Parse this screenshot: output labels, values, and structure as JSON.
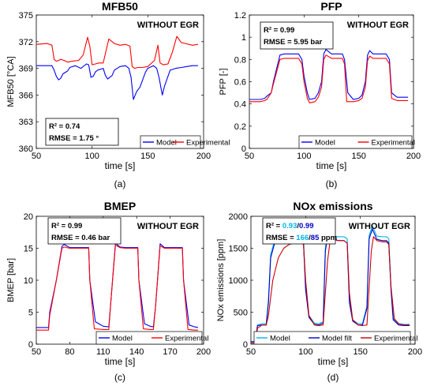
{
  "chart_data": [
    {
      "type": "line",
      "title": "MFB50",
      "xlabel": "time [s]",
      "ylabel": "MFB50 [°CA]",
      "xlim": [
        50,
        200
      ],
      "ylim": [
        360,
        375
      ],
      "xticks": [
        "50",
        "100",
        "150",
        "200"
      ],
      "yticks": [
        "360",
        "363",
        "366",
        "369",
        "372",
        "375"
      ],
      "annotation": "WITHOUT EGR",
      "stats": [
        "R² = 0.74",
        "RMSE = 1.75 °"
      ],
      "legend_position": "bottom-right",
      "caption": "(a)",
      "series": [
        {
          "name": "Model",
          "color": "#0000ff",
          "x": [
            50,
            64,
            66,
            68,
            70,
            72,
            74,
            78,
            80,
            85,
            90,
            95,
            97,
            99,
            101,
            103,
            105,
            110,
            112,
            114,
            118,
            120,
            125,
            130,
            133,
            135,
            137,
            140,
            143,
            148,
            150,
            155,
            158,
            160,
            163,
            165,
            170,
            175,
            180,
            185,
            190,
            195
          ],
          "y": [
            369.3,
            369.3,
            368.8,
            368.1,
            367.7,
            367.9,
            368.4,
            368.7,
            369.1,
            369.3,
            369.0,
            369.5,
            369.4,
            368.0,
            368.1,
            368.6,
            368.8,
            369.0,
            368.2,
            367.8,
            368.2,
            368.8,
            369.2,
            369.3,
            369.0,
            368.0,
            365.5,
            366.4,
            366.9,
            368.6,
            369.0,
            369.3,
            369.0,
            368.0,
            366.0,
            367.0,
            368.8,
            369.0,
            369.1,
            369.2,
            369.3,
            369.3
          ]
        },
        {
          "name": "Experimental",
          "color": "#ff0000",
          "x": [
            50,
            60,
            64,
            66,
            68,
            72,
            75,
            78,
            82,
            88,
            92,
            96,
            98,
            100,
            103,
            106,
            110,
            113,
            115,
            120,
            125,
            130,
            134,
            136,
            138,
            141,
            145,
            150,
            156,
            159,
            161,
            164,
            168,
            172,
            176,
            180,
            190,
            195
          ],
          "y": [
            371.7,
            371.8,
            371.6,
            370.0,
            369.8,
            370.0,
            369.9,
            369.7,
            369.8,
            369.9,
            370.5,
            372.5,
            371.5,
            369.4,
            369.5,
            369.6,
            369.6,
            371.2,
            372.3,
            371.8,
            371.6,
            371.7,
            371.5,
            369.2,
            369.0,
            369.1,
            369.1,
            369.2,
            369.9,
            371.6,
            369.6,
            369.4,
            369.5,
            370.8,
            372.6,
            371.9,
            371.6,
            371.7
          ]
        }
      ]
    },
    {
      "type": "line",
      "title": "PFP",
      "xlabel": "time [s]",
      "ylabel": "PFP [-]",
      "xlim": [
        50,
        200
      ],
      "ylim": [
        0,
        1.2
      ],
      "xticks": [
        "50",
        "100",
        "150",
        "200"
      ],
      "yticks": [
        "0",
        "0.2",
        "0.4",
        "0.6",
        "0.8",
        "1",
        "1.2"
      ],
      "annotation": "WITHOUT EGR",
      "stats": [
        "R² = 0.99",
        "RMSE = 5.95 bar"
      ],
      "legend_position": "bottom-right",
      "caption": "(b)",
      "series": [
        {
          "name": "Model",
          "color": "#0000ff",
          "x": [
            50,
            60,
            64,
            66,
            70,
            72,
            78,
            82,
            90,
            95,
            98,
            100,
            103,
            105,
            110,
            113,
            116,
            118,
            120,
            125,
            130,
            135,
            137,
            140,
            145,
            150,
            153,
            156,
            158,
            160,
            163,
            165,
            170,
            175,
            178,
            180,
            185,
            190,
            195
          ],
          "y": [
            0.44,
            0.44,
            0.45,
            0.47,
            0.5,
            0.6,
            0.84,
            0.85,
            0.85,
            0.85,
            0.8,
            0.65,
            0.5,
            0.44,
            0.45,
            0.5,
            0.6,
            0.85,
            0.89,
            0.85,
            0.85,
            0.85,
            0.8,
            0.5,
            0.44,
            0.45,
            0.48,
            0.6,
            0.84,
            0.88,
            0.85,
            0.85,
            0.85,
            0.85,
            0.8,
            0.5,
            0.46,
            0.46,
            0.46
          ]
        },
        {
          "name": "Experimental",
          "color": "#ff0000",
          "x": [
            50,
            60,
            64,
            66,
            70,
            72,
            78,
            82,
            90,
            95,
            98,
            100,
            103,
            105,
            110,
            113,
            116,
            118,
            120,
            125,
            130,
            135,
            137,
            139,
            145,
            150,
            153,
            156,
            158,
            160,
            163,
            165,
            170,
            175,
            178,
            180,
            185,
            190,
            195
          ],
          "y": [
            0.42,
            0.42,
            0.43,
            0.44,
            0.5,
            0.58,
            0.8,
            0.81,
            0.81,
            0.81,
            0.76,
            0.6,
            0.45,
            0.41,
            0.42,
            0.46,
            0.55,
            0.8,
            0.84,
            0.81,
            0.81,
            0.81,
            0.76,
            0.42,
            0.42,
            0.43,
            0.45,
            0.55,
            0.79,
            0.83,
            0.81,
            0.81,
            0.81,
            0.81,
            0.76,
            0.45,
            0.43,
            0.43,
            0.43
          ]
        }
      ]
    },
    {
      "type": "line",
      "title": "BMEP",
      "xlabel": "time [s]",
      "ylabel": "BMEP [bar]",
      "xlim": [
        50,
        200
      ],
      "ylim": [
        0,
        20
      ],
      "xticks": [
        "50",
        "80",
        "110",
        "140",
        "170",
        "200"
      ],
      "yticks": [
        "0",
        "5",
        "10",
        "15",
        "20"
      ],
      "annotation": "WITHOUT EGR",
      "stats": [
        "R² = 0.99",
        "RMSE = 0.46 bar"
      ],
      "legend_position": "bottom-right",
      "caption": "(c)",
      "series": [
        {
          "name": "Model",
          "color": "#0000ff",
          "x": [
            50,
            55,
            61,
            62,
            68,
            73,
            75,
            80,
            85,
            90,
            97,
            98,
            103,
            110,
            115,
            117,
            121,
            125,
            130,
            135,
            141,
            142,
            147,
            152,
            155,
            157,
            161,
            165,
            170,
            175,
            181,
            182,
            187,
            192,
            195
          ],
          "y": [
            2.6,
            2.6,
            2.6,
            5.0,
            10.0,
            15.3,
            15.6,
            15.1,
            15.1,
            15.1,
            15.1,
            10.0,
            3.5,
            2.8,
            2.7,
            7.0,
            15.8,
            15.2,
            15.1,
            15.1,
            15.1,
            10.0,
            3.2,
            2.8,
            2.7,
            6.0,
            15.7,
            15.1,
            15.1,
            15.1,
            15.1,
            10.0,
            3.0,
            2.7,
            2.6
          ]
        },
        {
          "name": "Experimental",
          "color": "#ff0000",
          "x": [
            50,
            55,
            61,
            62,
            68,
            73,
            75,
            80,
            85,
            90,
            97,
            98,
            102,
            110,
            115,
            117,
            121,
            125,
            130,
            135,
            141,
            142,
            146,
            152,
            155,
            157,
            161,
            165,
            170,
            175,
            181,
            182,
            186,
            192,
            195
          ],
          "y": [
            2.2,
            2.2,
            2.2,
            4.5,
            10.0,
            15.0,
            15.2,
            15.0,
            15.0,
            15.0,
            15.0,
            10.0,
            2.4,
            2.3,
            2.3,
            7.0,
            15.5,
            15.1,
            15.0,
            15.0,
            15.0,
            10.0,
            2.4,
            2.3,
            2.3,
            6.0,
            15.4,
            15.0,
            15.0,
            15.0,
            15.0,
            10.0,
            2.3,
            2.2,
            2.2
          ]
        }
      ]
    },
    {
      "type": "line",
      "title": "NOx emissions",
      "xlabel": "time [s]",
      "ylabel": "NOx emissions [ppm]",
      "xlim": [
        50,
        200
      ],
      "ylim": [
        0,
        2000
      ],
      "xticks": [
        "50",
        "100",
        "150",
        "200"
      ],
      "yticks": [
        "0",
        "500",
        "1000",
        "1500",
        "2000"
      ],
      "annotation": "WITHOUT EGR",
      "stats_label_1": "R² = ",
      "stats_value_1a": "0.93",
      "stats_sep": "/",
      "stats_value_1b": "0.99",
      "stats_label_2": "RMSE = ",
      "stats_value_2a": "166",
      "stats_value_2b": "85",
      "stats_unit_2": " ppm",
      "stats_colors": [
        "#00b4f0",
        "#0000c8"
      ],
      "legend_position": "bottom",
      "caption": "(d)",
      "series": [
        {
          "name": "Model",
          "color": "#00b4f0",
          "x": [
            50,
            54,
            56,
            60,
            64,
            66,
            68,
            72,
            75,
            80,
            85,
            90,
            95,
            98,
            100,
            103,
            108,
            112,
            116,
            118,
            121,
            125,
            130,
            135,
            138,
            140,
            143,
            148,
            152,
            156,
            158,
            161,
            165,
            170,
            174,
            176,
            178,
            180,
            185,
            190,
            195
          ],
          "y": [
            40,
            40,
            300,
            320,
            320,
            700,
            1400,
            1650,
            1680,
            1690,
            1690,
            1690,
            1690,
            1650,
            900,
            450,
            330,
            320,
            350,
            1500,
            1850,
            1690,
            1680,
            1680,
            1650,
            700,
            380,
            320,
            320,
            600,
            1700,
            1850,
            1690,
            1680,
            1680,
            1650,
            900,
            400,
            320,
            310,
            310
          ]
        },
        {
          "name": "Model filt",
          "color": "#0000c8",
          "x": [
            50,
            54,
            56,
            60,
            64,
            66,
            68,
            72,
            75,
            80,
            85,
            90,
            95,
            98,
            100,
            103,
            108,
            112,
            116,
            118,
            121,
            125,
            130,
            135,
            138,
            140,
            143,
            148,
            152,
            156,
            158,
            161,
            165,
            170,
            174,
            176,
            178,
            180,
            185,
            190,
            195
          ],
          "y": [
            40,
            40,
            290,
            300,
            300,
            650,
            1350,
            1600,
            1620,
            1620,
            1620,
            1620,
            1620,
            1580,
            850,
            420,
            310,
            300,
            330,
            1450,
            1800,
            1640,
            1620,
            1620,
            1580,
            650,
            360,
            300,
            300,
            560,
            1650,
            1800,
            1640,
            1620,
            1620,
            1580,
            850,
            380,
            300,
            290,
            290
          ]
        },
        {
          "name": "Experimental",
          "color": "#cc0000",
          "x": [
            50,
            54,
            56,
            60,
            64,
            66,
            70,
            75,
            80,
            85,
            90,
            95,
            98,
            100,
            103,
            108,
            112,
            116,
            120,
            123,
            125,
            130,
            135,
            138,
            140,
            143,
            148,
            152,
            156,
            160,
            162,
            165,
            170,
            174,
            176,
            178,
            181,
            185,
            190,
            195
          ],
          "y": [
            20,
            20,
            250,
            300,
            300,
            450,
            1000,
            1350,
            1500,
            1560,
            1580,
            1590,
            1560,
            1000,
            450,
            300,
            290,
            300,
            1300,
            1700,
            1640,
            1620,
            1620,
            1580,
            800,
            380,
            300,
            290,
            300,
            1450,
            1680,
            1620,
            1600,
            1600,
            1560,
            900,
            400,
            320,
            300,
            300
          ]
        }
      ]
    }
  ]
}
